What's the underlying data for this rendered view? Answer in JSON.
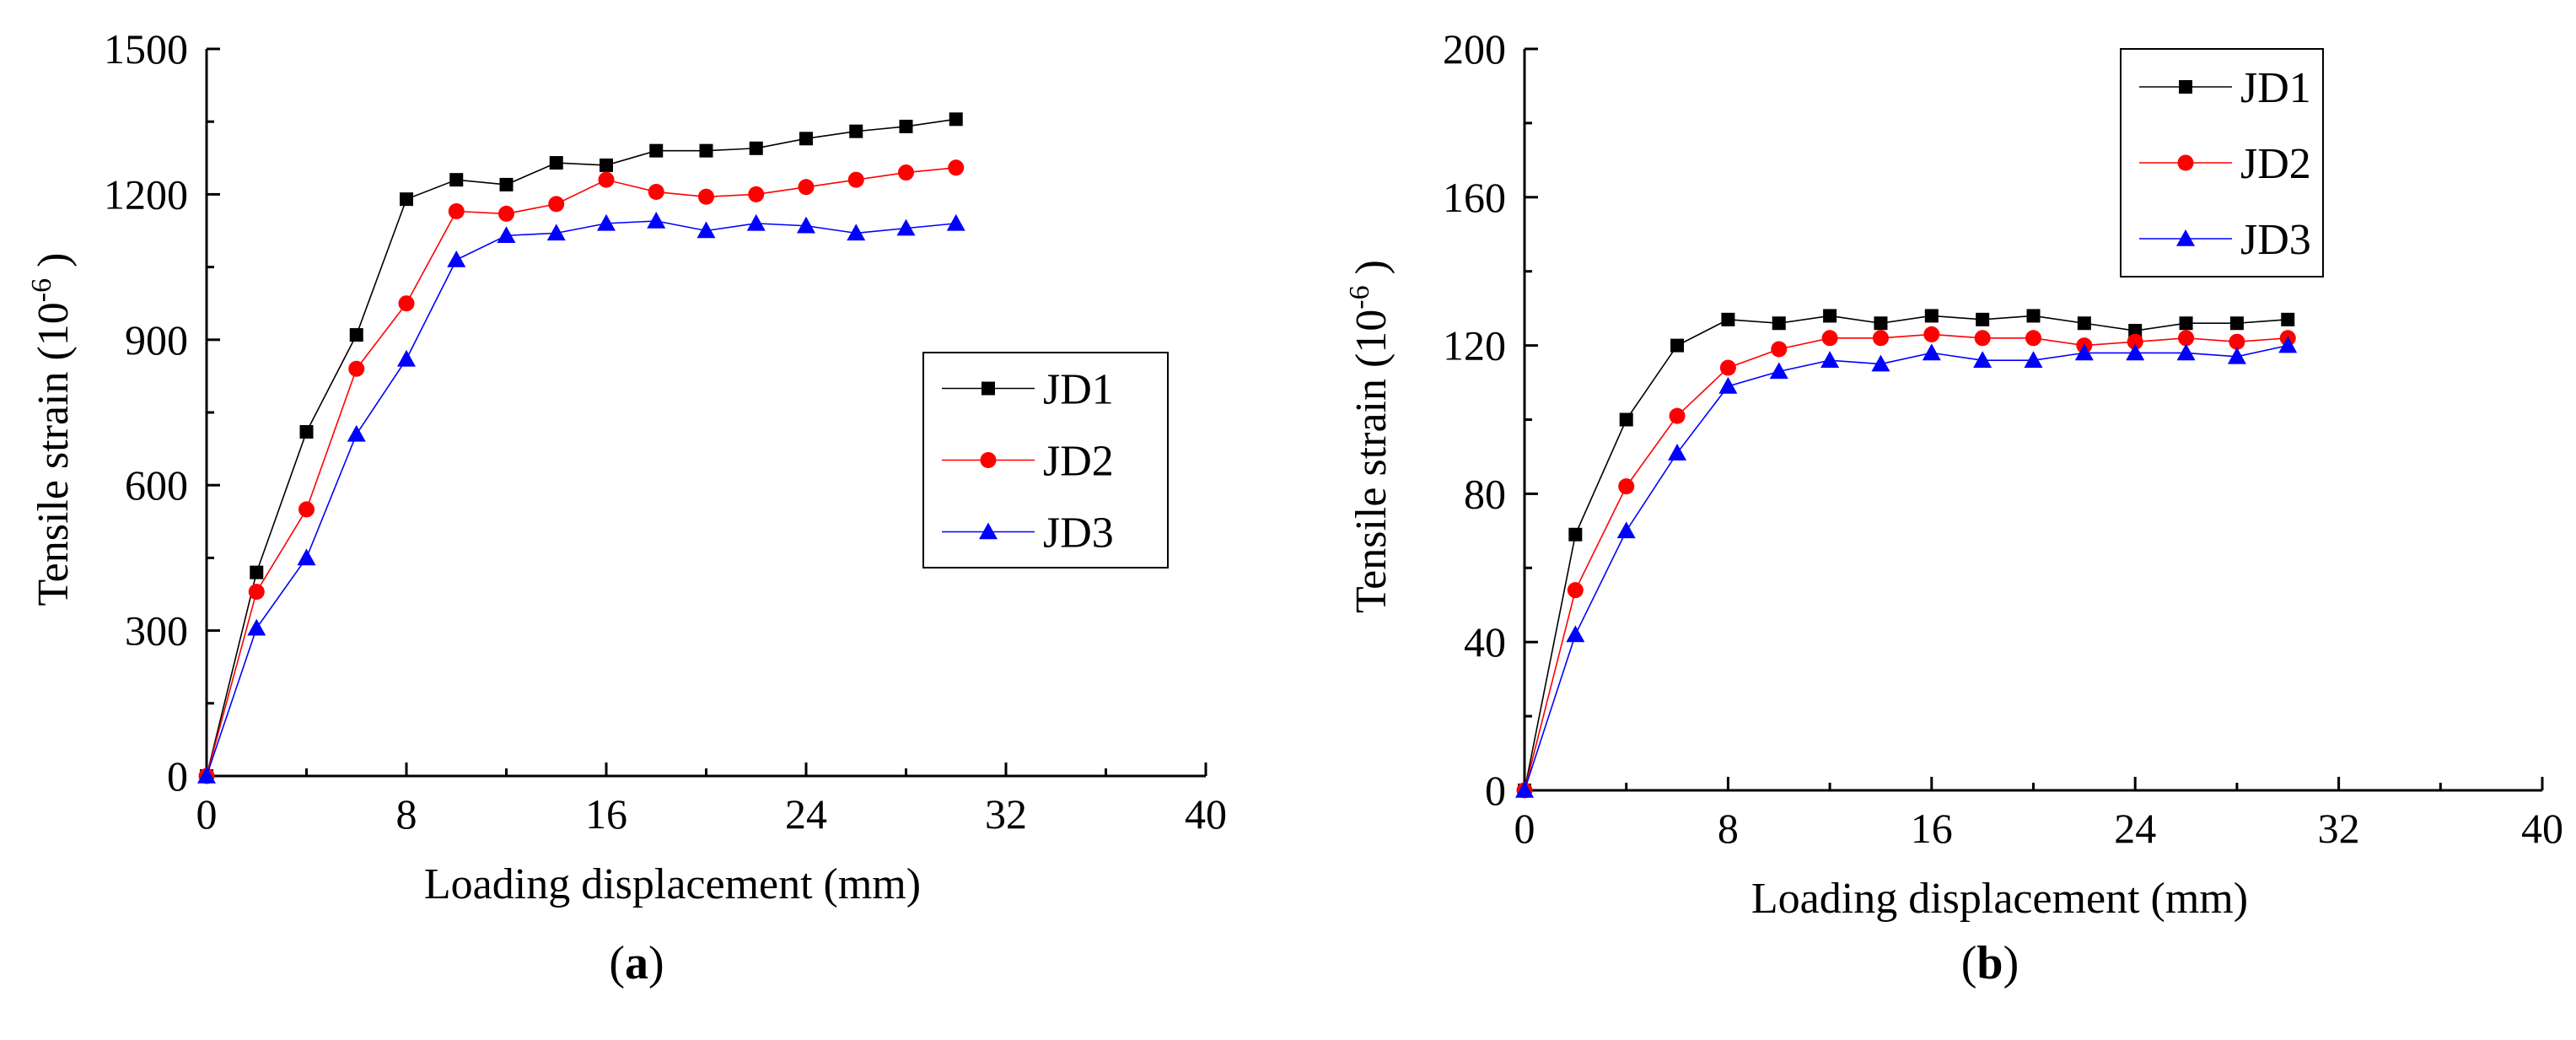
{
  "chart_data": [
    {
      "type": "line",
      "panel_label": "a",
      "xlabel": "Loading displacement (mm)",
      "ylabel_prefix": "Tensile strain (10",
      "ylabel_exp": "-6",
      "ylabel_suffix": ")",
      "xlim": [
        0,
        40
      ],
      "ylim": [
        0,
        1500
      ],
      "xticks": [
        0,
        8,
        16,
        24,
        32,
        40
      ],
      "xtick_labels": [
        "0",
        "8",
        "16",
        "24",
        "32",
        "40"
      ],
      "yticks": [
        0,
        300,
        600,
        900,
        1200,
        1500
      ],
      "ytick_labels": [
        "0",
        "300",
        "600",
        "900",
        "1200",
        "1500"
      ],
      "grid": false,
      "legend_position": "middle-right",
      "x": [
        0,
        2,
        4,
        6,
        8,
        10,
        12,
        14,
        16,
        18,
        20,
        22,
        24,
        26,
        28,
        30
      ],
      "series": [
        {
          "name": "JD1",
          "color": "#000000",
          "marker": "square",
          "values": [
            0,
            420,
            710,
            910,
            1190,
            1230,
            1220,
            1265,
            1260,
            1290,
            1290,
            1295,
            1315,
            1330,
            1340,
            1355
          ]
        },
        {
          "name": "JD2",
          "color": "#ff0000",
          "marker": "circle",
          "values": [
            0,
            380,
            550,
            840,
            975,
            1165,
            1160,
            1180,
            1230,
            1205,
            1195,
            1200,
            1215,
            1230,
            1245,
            1255
          ]
        },
        {
          "name": "JD3",
          "color": "#0000ff",
          "marker": "triangle",
          "values": [
            0,
            305,
            450,
            705,
            860,
            1065,
            1115,
            1120,
            1140,
            1145,
            1125,
            1140,
            1135,
            1120,
            1130,
            1140
          ]
        }
      ]
    },
    {
      "type": "line",
      "panel_label": "b",
      "xlabel": "Loading displacement (mm)",
      "ylabel_prefix": "Tensile strain (10",
      "ylabel_exp": "-6",
      "ylabel_suffix": ")",
      "xlim": [
        0,
        40
      ],
      "ylim": [
        0,
        200
      ],
      "xticks": [
        0,
        8,
        16,
        24,
        32,
        40
      ],
      "xtick_labels": [
        "0",
        "8",
        "16",
        "24",
        "32",
        "40"
      ],
      "yticks": [
        0,
        40,
        80,
        120,
        160,
        200
      ],
      "ytick_labels": [
        "0",
        "40",
        "80",
        "120",
        "160",
        "200"
      ],
      "grid": false,
      "legend_position": "top-right",
      "x": [
        0,
        2,
        4,
        6,
        8,
        10,
        12,
        14,
        16,
        18,
        20,
        22,
        24,
        26,
        28,
        30
      ],
      "series": [
        {
          "name": "JD1",
          "color": "#000000",
          "marker": "square",
          "values": [
            0,
            69,
            100,
            120,
            127,
            126,
            128,
            126,
            128,
            127,
            128,
            126,
            124,
            126,
            126,
            127
          ]
        },
        {
          "name": "JD2",
          "color": "#ff0000",
          "marker": "circle",
          "values": [
            0,
            54,
            82,
            101,
            114,
            119,
            122,
            122,
            123,
            122,
            122,
            120,
            121,
            122,
            121,
            122
          ]
        },
        {
          "name": "JD3",
          "color": "#0000ff",
          "marker": "triangle",
          "values": [
            0,
            42,
            70,
            91,
            109,
            113,
            116,
            115,
            118,
            116,
            116,
            118,
            118,
            118,
            117,
            120
          ]
        }
      ]
    }
  ]
}
